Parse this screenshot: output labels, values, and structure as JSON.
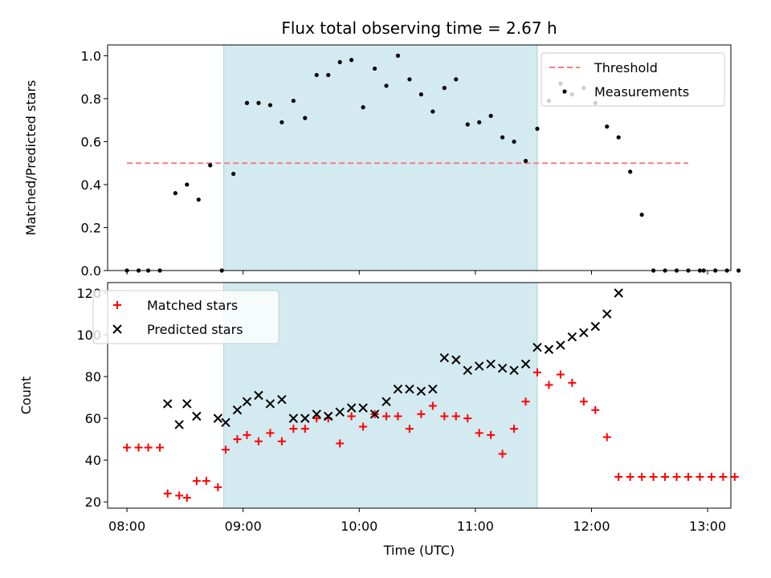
{
  "chart_data": [
    {
      "panel": "top",
      "type": "scatter",
      "title": "Flux total observing time = 2.67 h",
      "xlabel": "",
      "ylabel": "Matched/Predicted stars",
      "ylim": [
        0,
        1.05
      ],
      "yticks": [
        "0.0",
        "0.2",
        "0.4",
        "0.6",
        "0.8",
        "1.0"
      ],
      "grid": false,
      "legend_position": "top-right",
      "shaded_span": {
        "start": "08:50",
        "end": "11:32",
        "color": "#d3eaf0"
      },
      "threshold": {
        "name": "Threshold",
        "value": 0.5,
        "x_start": "08:00",
        "x_end": "12:50",
        "color": "#f08080",
        "style": "dashed"
      },
      "series": [
        {
          "name": "Measurements",
          "color": "#000000",
          "marker": "dot",
          "points": [
            [
              "08:00",
              0.0
            ],
            [
              "08:06",
              0.0
            ],
            [
              "08:11",
              0.0
            ],
            [
              "08:17",
              0.0
            ],
            [
              "08:25",
              0.36
            ],
            [
              "08:31",
              0.4
            ],
            [
              "08:37",
              0.33
            ],
            [
              "08:43",
              0.49
            ],
            [
              "08:49",
              0.0
            ],
            [
              "08:55",
              0.45
            ],
            [
              "09:02",
              0.78
            ],
            [
              "09:08",
              0.78
            ],
            [
              "09:14",
              0.77
            ],
            [
              "09:20",
              0.69
            ],
            [
              "09:26",
              0.79
            ],
            [
              "09:32",
              0.71
            ],
            [
              "09:38",
              0.91
            ],
            [
              "09:44",
              0.91
            ],
            [
              "09:50",
              0.97
            ],
            [
              "09:56",
              0.98
            ],
            [
              "10:02",
              0.76
            ],
            [
              "10:08",
              0.94
            ],
            [
              "10:14",
              0.86
            ],
            [
              "10:20",
              1.0
            ],
            [
              "10:26",
              0.89
            ],
            [
              "10:32",
              0.82
            ],
            [
              "10:38",
              0.74
            ],
            [
              "10:44",
              0.85
            ],
            [
              "10:50",
              0.89
            ],
            [
              "10:56",
              0.68
            ],
            [
              "11:02",
              0.69
            ],
            [
              "11:08",
              0.72
            ],
            [
              "11:14",
              0.62
            ],
            [
              "11:20",
              0.6
            ],
            [
              "11:26",
              0.51
            ],
            [
              "11:32",
              0.66
            ],
            [
              "11:38",
              0.79
            ],
            [
              "11:44",
              0.87
            ],
            [
              "11:50",
              0.82
            ],
            [
              "11:56",
              0.85
            ],
            [
              "12:02",
              0.78
            ],
            [
              "12:08",
              0.67
            ],
            [
              "12:14",
              0.62
            ],
            [
              "12:20",
              0.46
            ],
            [
              "12:26",
              0.26
            ],
            [
              "12:32",
              0.0
            ],
            [
              "12:38",
              0.0
            ],
            [
              "12:44",
              0.0
            ],
            [
              "12:50",
              0.0
            ],
            [
              "12:56",
              0.0
            ],
            [
              "12:58",
              0.0
            ],
            [
              "13:04",
              0.0
            ],
            [
              "13:10",
              0.0
            ],
            [
              "13:16",
              0.0
            ]
          ]
        }
      ]
    },
    {
      "panel": "bottom",
      "type": "scatter",
      "title": "",
      "xlabel": "Time (UTC)",
      "ylabel": "Count",
      "ylim": [
        17,
        125
      ],
      "yticks": [
        "20",
        "40",
        "60",
        "80",
        "100",
        "120"
      ],
      "xticks": [
        "08:00",
        "09:00",
        "10:00",
        "11:00",
        "12:00",
        "13:00"
      ],
      "grid": false,
      "legend_position": "top-left",
      "shaded_span": {
        "start": "08:50",
        "end": "11:32",
        "color": "#d3eaf0"
      },
      "series": [
        {
          "name": "Matched stars",
          "color": "#ff0000",
          "marker": "plus",
          "points": [
            [
              "08:00",
              46
            ],
            [
              "08:06",
              46
            ],
            [
              "08:11",
              46
            ],
            [
              "08:17",
              46
            ],
            [
              "08:21",
              24
            ],
            [
              "08:27",
              23
            ],
            [
              "08:31",
              22
            ],
            [
              "08:36",
              30
            ],
            [
              "08:41",
              30
            ],
            [
              "08:47",
              27
            ],
            [
              "08:51",
              45
            ],
            [
              "08:57",
              50
            ],
            [
              "09:02",
              52
            ],
            [
              "09:08",
              49
            ],
            [
              "09:14",
              53
            ],
            [
              "09:20",
              49
            ],
            [
              "09:26",
              55
            ],
            [
              "09:32",
              55
            ],
            [
              "09:38",
              60
            ],
            [
              "09:44",
              60
            ],
            [
              "09:50",
              48
            ],
            [
              "09:56",
              61
            ],
            [
              "10:02",
              56
            ],
            [
              "10:08",
              62
            ],
            [
              "10:14",
              61
            ],
            [
              "10:20",
              61
            ],
            [
              "10:26",
              55
            ],
            [
              "10:32",
              62
            ],
            [
              "10:38",
              66
            ],
            [
              "10:44",
              61
            ],
            [
              "10:50",
              61
            ],
            [
              "10:56",
              60
            ],
            [
              "11:02",
              53
            ],
            [
              "11:08",
              52
            ],
            [
              "11:14",
              43
            ],
            [
              "11:20",
              55
            ],
            [
              "11:26",
              68
            ],
            [
              "11:32",
              82
            ],
            [
              "11:38",
              76
            ],
            [
              "11:44",
              81
            ],
            [
              "11:50",
              77
            ],
            [
              "11:56",
              68
            ],
            [
              "12:02",
              64
            ],
            [
              "12:08",
              51
            ],
            [
              "12:14",
              32
            ],
            [
              "12:20",
              32
            ],
            [
              "12:26",
              32
            ],
            [
              "12:32",
              32
            ],
            [
              "12:38",
              32
            ],
            [
              "12:44",
              32
            ],
            [
              "12:50",
              32
            ],
            [
              "12:56",
              32
            ],
            [
              "13:02",
              32
            ],
            [
              "13:08",
              32
            ],
            [
              "13:14",
              32
            ]
          ]
        },
        {
          "name": "Predicted stars",
          "color": "#000000",
          "marker": "x",
          "points": [
            [
              "08:21",
              67
            ],
            [
              "08:27",
              57
            ],
            [
              "08:31",
              67
            ],
            [
              "08:36",
              61
            ],
            [
              "08:47",
              60
            ],
            [
              "08:51",
              58
            ],
            [
              "08:57",
              64
            ],
            [
              "09:02",
              68
            ],
            [
              "09:08",
              71
            ],
            [
              "09:14",
              67
            ],
            [
              "09:20",
              69
            ],
            [
              "09:26",
              60
            ],
            [
              "09:32",
              60
            ],
            [
              "09:38",
              62
            ],
            [
              "09:44",
              61
            ],
            [
              "09:50",
              63
            ],
            [
              "09:56",
              65
            ],
            [
              "10:02",
              65
            ],
            [
              "10:08",
              62
            ],
            [
              "10:14",
              68
            ],
            [
              "10:20",
              74
            ],
            [
              "10:26",
              74
            ],
            [
              "10:32",
              73
            ],
            [
              "10:38",
              74
            ],
            [
              "10:44",
              89
            ],
            [
              "10:50",
              88
            ],
            [
              "10:56",
              83
            ],
            [
              "11:02",
              85
            ],
            [
              "11:08",
              86
            ],
            [
              "11:14",
              84
            ],
            [
              "11:20",
              83
            ],
            [
              "11:26",
              86
            ],
            [
              "11:32",
              94
            ],
            [
              "11:38",
              93
            ],
            [
              "11:44",
              95
            ],
            [
              "11:50",
              99
            ],
            [
              "11:56",
              101
            ],
            [
              "12:02",
              104
            ],
            [
              "12:08",
              110
            ],
            [
              "12:14",
              120
            ]
          ]
        }
      ]
    }
  ]
}
